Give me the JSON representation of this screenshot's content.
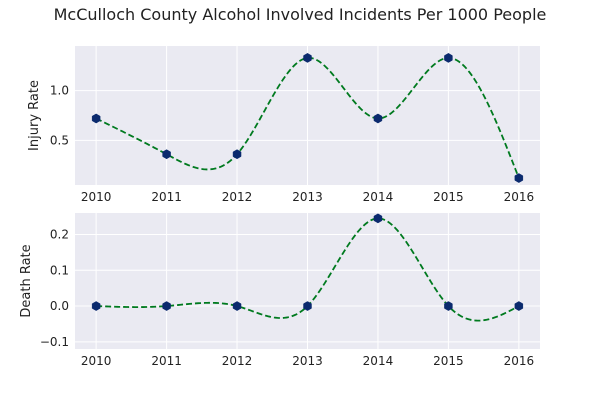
{
  "title": "McCulloch County Alcohol Involved Incidents Per 1000 People",
  "colors": {
    "background": "#eaeaf2",
    "grid": "#ffffff",
    "line": "#007a1f",
    "marker": "#0b2a6e"
  },
  "chart_data": [
    {
      "type": "line",
      "title": "",
      "xlabel": "",
      "ylabel": "Injury Rate",
      "x": [
        2010,
        2011,
        2012,
        2013,
        2014,
        2015,
        2016
      ],
      "values": [
        0.72,
        0.36,
        0.36,
        1.33,
        0.72,
        1.33,
        0.12
      ],
      "xticks": [
        2010,
        2011,
        2012,
        2013,
        2014,
        2015,
        2016
      ],
      "yticks": [
        0.5,
        1.0
      ],
      "ytick_labels": [
        "0.5",
        "1.0"
      ],
      "xlim": [
        2009.7,
        2016.3
      ],
      "ylim": [
        0.05,
        1.45
      ],
      "line_style": "dashed smooth",
      "grid": true
    },
    {
      "type": "line",
      "title": "",
      "xlabel": "",
      "ylabel": "Death Rate",
      "x": [
        2010,
        2011,
        2012,
        2013,
        2014,
        2015,
        2016
      ],
      "values": [
        0.0,
        0.0,
        0.0,
        0.0,
        0.245,
        0.0,
        0.0
      ],
      "xticks": [
        2010,
        2011,
        2012,
        2013,
        2014,
        2015,
        2016
      ],
      "yticks": [
        -0.1,
        0.0,
        0.1,
        0.2
      ],
      "ytick_labels": [
        "−0.1",
        "0.0",
        "0.1",
        "0.2"
      ],
      "xlim": [
        2009.7,
        2016.3
      ],
      "ylim": [
        -0.12,
        0.26
      ],
      "line_style": "dashed smooth",
      "grid": true
    }
  ]
}
